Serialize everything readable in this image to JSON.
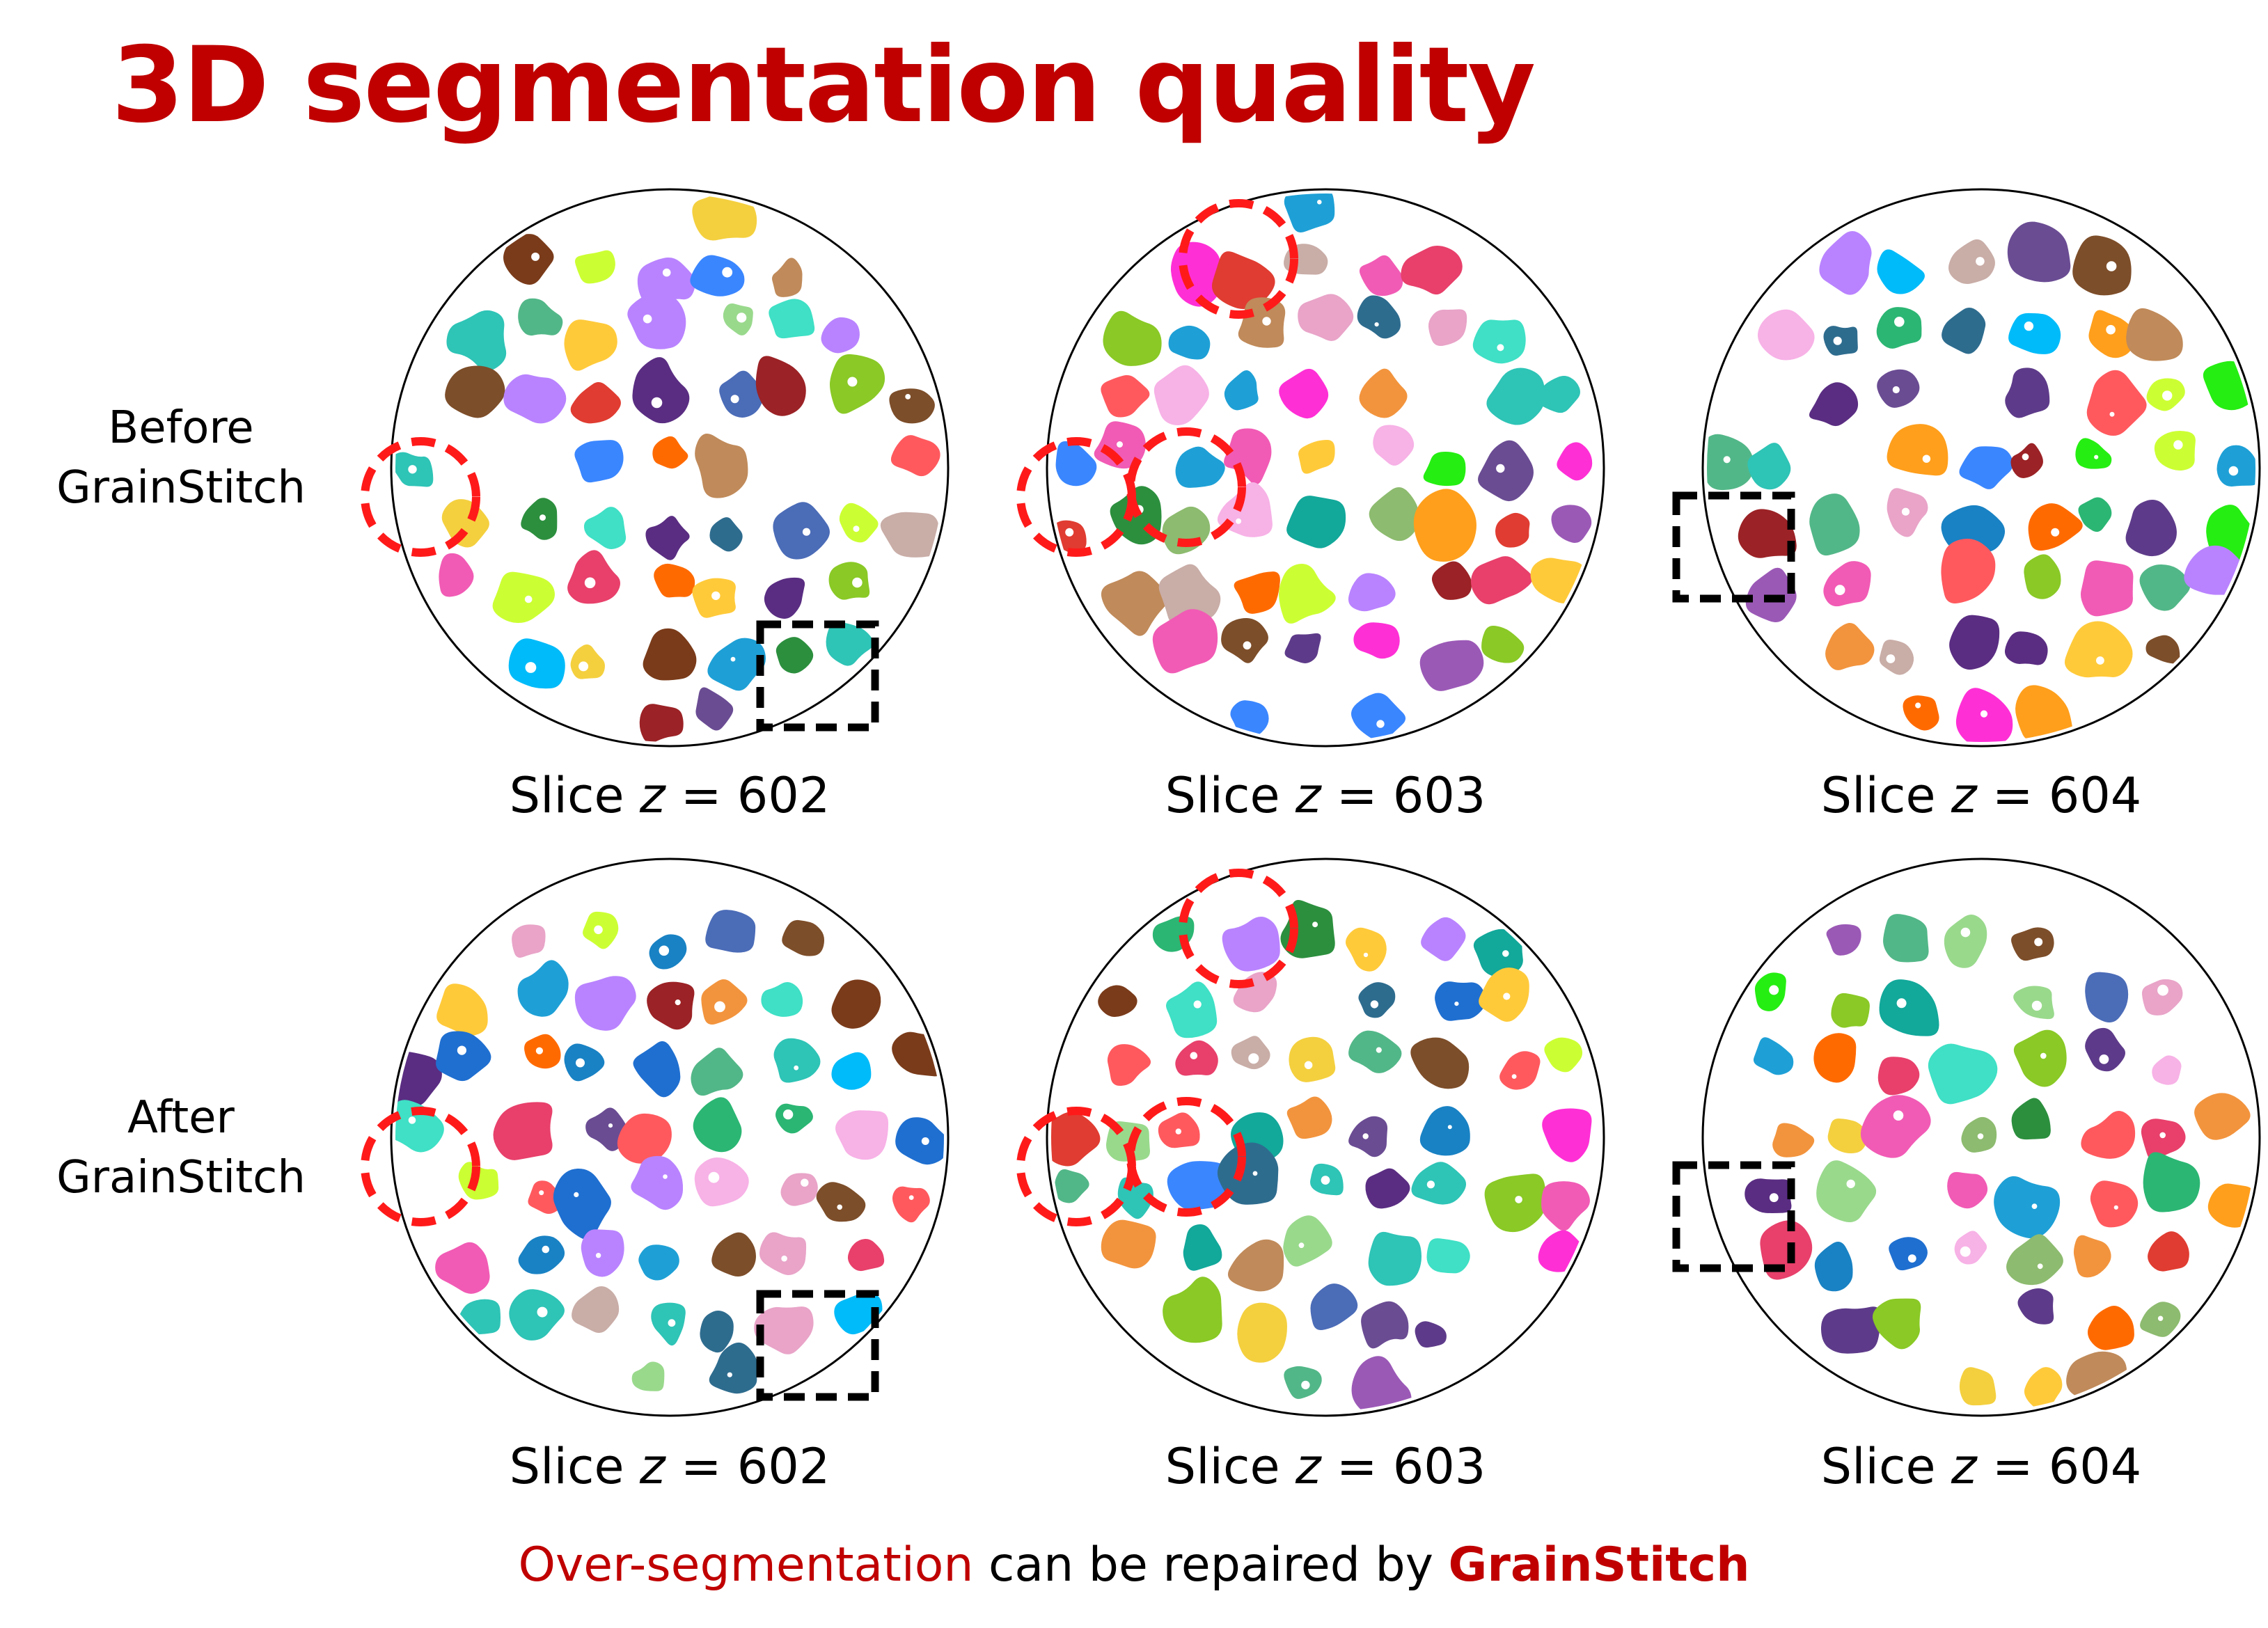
{
  "title": "3D segmentation quality",
  "rows": [
    {
      "label_line1": "Before",
      "label_line2": "GrainStitch"
    },
    {
      "label_line1": "After",
      "label_line2": "GrainStitch"
    }
  ],
  "slice_label": {
    "prefix": "Slice ",
    "var": "z",
    "eq": " = "
  },
  "slices": [
    "602",
    "603",
    "604"
  ],
  "footer": {
    "highlight": "Over-segmentation",
    "middle": " can be repaired by ",
    "brand": "GrainStitch"
  },
  "colors": {
    "title": "#c00000",
    "circle_marker": "#ff1a1a",
    "box_marker": "#000000",
    "palette": [
      "#8dbb6f",
      "#e9a4c8",
      "#2e6c8e",
      "#2bb673",
      "#f2943d",
      "#9b59b6",
      "#5a2d82",
      "#e8406b",
      "#12a89a",
      "#f4d03f",
      "#3fe0c5",
      "#25ee12",
      "#ff2fd6",
      "#1f6fd0",
      "#7a3b1a",
      "#c08a5a",
      "#1ea0d6",
      "#ccff33",
      "#ff6a00",
      "#7d4e2a",
      "#2c8f3e",
      "#f7b2e6",
      "#4b6cb7",
      "#e03c31",
      "#99d98c",
      "#b983ff",
      "#ff9f1c",
      "#5e3b8a",
      "#2ec4b6",
      "#c9ada7",
      "#3a86ff",
      "#8ac926",
      "#ff595e",
      "#6a4c93",
      "#1982c4",
      "#ffca3a",
      "#9b2226",
      "#52b788",
      "#f15bb5",
      "#00bbf9"
    ]
  }
}
